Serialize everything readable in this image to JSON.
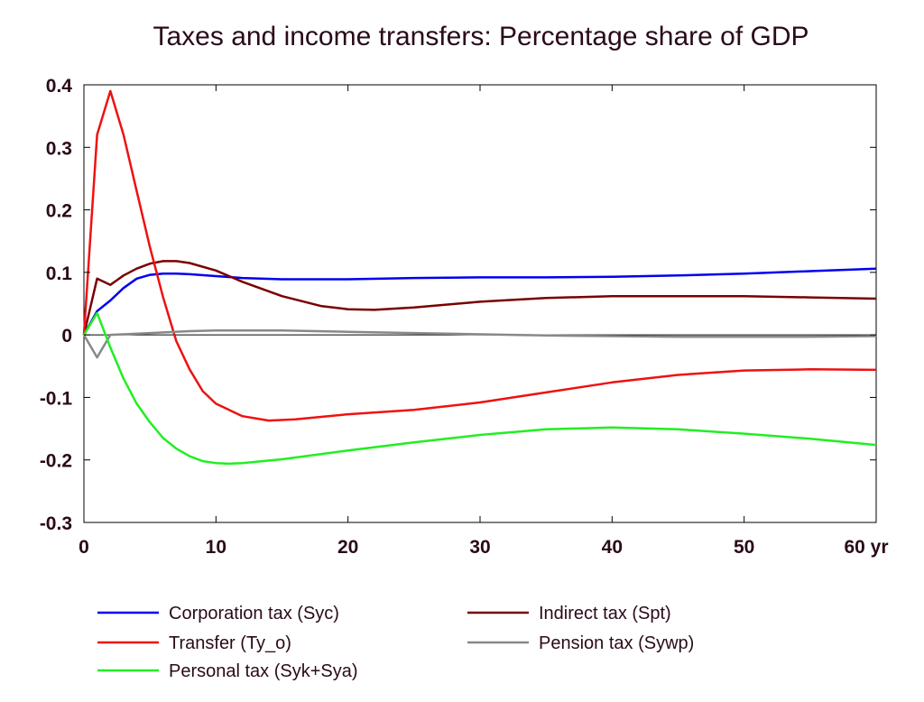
{
  "chart_data": {
    "type": "line",
    "title": "Taxes and income transfers: Percentage share of GDP",
    "xlabel": "",
    "ylabel": "",
    "xlim": [
      0,
      60
    ],
    "ylim": [
      -0.3,
      0.4
    ],
    "x_ticks": [
      0,
      10,
      20,
      30,
      40,
      50,
      60
    ],
    "x_tick_labels": [
      "0",
      "10",
      "20",
      "30",
      "40",
      "50",
      "60 yr"
    ],
    "y_ticks": [
      -0.3,
      -0.2,
      -0.1,
      0,
      0.1,
      0.2,
      0.3,
      0.4
    ],
    "y_tick_labels": [
      "-0.3",
      "-0.2",
      "-0.1",
      "0",
      "0.1",
      "0.2",
      "0.3",
      "0.4"
    ],
    "grid": false,
    "legend_position": "bottom",
    "series": [
      {
        "name": "Corporation tax (Syc)",
        "color": "#0000ee",
        "x": [
          0,
          1,
          2,
          3,
          4,
          5,
          6,
          7,
          8,
          10,
          12,
          15,
          20,
          25,
          30,
          35,
          40,
          45,
          50,
          55,
          60
        ],
        "y": [
          0,
          0.038,
          0.055,
          0.075,
          0.09,
          0.096,
          0.098,
          0.098,
          0.097,
          0.094,
          0.091,
          0.089,
          0.089,
          0.091,
          0.092,
          0.092,
          0.093,
          0.095,
          0.098,
          0.102,
          0.106
        ]
      },
      {
        "name": "Indirect tax (Spt)",
        "color": "#7a0000",
        "x": [
          0,
          1,
          2,
          3,
          4,
          5,
          6,
          7,
          8,
          10,
          12,
          15,
          18,
          20,
          22,
          25,
          30,
          35,
          40,
          45,
          50,
          55,
          60
        ],
        "y": [
          0,
          0.09,
          0.08,
          0.095,
          0.106,
          0.114,
          0.118,
          0.118,
          0.115,
          0.103,
          0.085,
          0.062,
          0.046,
          0.041,
          0.04,
          0.044,
          0.053,
          0.059,
          0.062,
          0.062,
          0.062,
          0.06,
          0.058
        ]
      },
      {
        "name": "Transfer (Ty_o)",
        "color": "#ee1111",
        "x": [
          0,
          1,
          2,
          3,
          4,
          5,
          6,
          7,
          8,
          9,
          10,
          12,
          14,
          16,
          20,
          25,
          30,
          35,
          40,
          45,
          50,
          55,
          60
        ],
        "y": [
          0,
          0.32,
          0.39,
          0.32,
          0.23,
          0.14,
          0.06,
          -0.01,
          -0.055,
          -0.09,
          -0.11,
          -0.13,
          -0.137,
          -0.135,
          -0.127,
          -0.12,
          -0.108,
          -0.092,
          -0.076,
          -0.064,
          -0.057,
          -0.055,
          -0.056
        ]
      },
      {
        "name": "Pension tax (Sywp)",
        "color": "#888888",
        "x": [
          0,
          1,
          2,
          3,
          5,
          8,
          10,
          15,
          20,
          25,
          30,
          35,
          40,
          45,
          50,
          55,
          60
        ],
        "y": [
          0,
          -0.036,
          0,
          0.001,
          0.003,
          0.006,
          0.007,
          0.007,
          0.005,
          0.003,
          0.001,
          -0.001,
          -0.002,
          -0.003,
          -0.003,
          -0.003,
          -0.002
        ]
      },
      {
        "name": "Personal tax (Syk+Sya)",
        "color": "#22ee22",
        "x": [
          0,
          1,
          2,
          3,
          4,
          5,
          6,
          7,
          8,
          9,
          10,
          11,
          12,
          15,
          20,
          25,
          30,
          35,
          40,
          45,
          50,
          55,
          60
        ],
        "y": [
          0,
          0.035,
          -0.02,
          -0.07,
          -0.11,
          -0.14,
          -0.165,
          -0.182,
          -0.194,
          -0.202,
          -0.205,
          -0.206,
          -0.205,
          -0.199,
          -0.185,
          -0.172,
          -0.16,
          -0.151,
          -0.148,
          -0.151,
          -0.158,
          -0.166,
          -0.176
        ]
      }
    ]
  }
}
